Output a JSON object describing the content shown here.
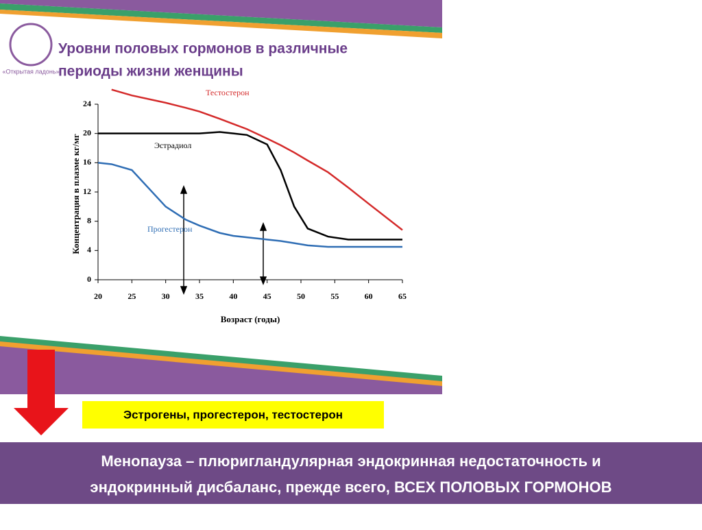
{
  "slide": {
    "logo": "«Открытая ладонь»",
    "title_line1": "Уровни половых гормонов в различные",
    "title_line2": "периоды жизни женщины",
    "highlight": "Эстрогены, прогестерон, тестостерон",
    "footer_line1": "Менопауза – плюригландулярная  эндокринная недостаточность  и",
    "footer_line2": "эндокринный  дисбаланс, прежде всего, ВСЕХ ПОЛОВЫХ ГОРМОНОВ"
  },
  "chart_data": {
    "type": "line",
    "x_label": "Возраст (годы)",
    "y_label": "Концентрация в плазме кг/мг",
    "x": [
      20,
      22,
      25,
      30,
      33,
      35,
      38,
      40,
      42,
      45,
      47,
      49,
      51,
      54,
      57,
      60,
      65
    ],
    "series": [
      {
        "name": "Тестостерон",
        "color": "#d42a2a",
        "values": [
          null,
          26,
          25.2,
          24.2,
          23.5,
          23,
          22,
          21.3,
          20.6,
          19.3,
          18.4,
          17.4,
          16.3,
          14.7,
          12.6,
          10.4,
          6.8
        ]
      },
      {
        "name": "Эстрадиол",
        "color": "#000000",
        "values": [
          20,
          20,
          20,
          20,
          20,
          20,
          20.2,
          20,
          19.8,
          18.5,
          15,
          10,
          7,
          5.9,
          5.5,
          5.5,
          5.5
        ]
      },
      {
        "name": "Прогестерон",
        "color": "#2e6db4",
        "values": [
          16,
          15.8,
          15,
          10,
          8.2,
          7.4,
          6.4,
          6,
          5.8,
          5.5,
          5.3,
          5,
          4.7,
          4.5,
          4.5,
          4.5,
          4.5
        ]
      }
    ],
    "xlim": [
      20,
      65
    ],
    "xticks": [
      20,
      25,
      30,
      35,
      40,
      45,
      50,
      55,
      60,
      65
    ],
    "ylim": [
      0,
      24
    ],
    "yticks": [
      0,
      4,
      8,
      12,
      16,
      20,
      24
    ]
  }
}
